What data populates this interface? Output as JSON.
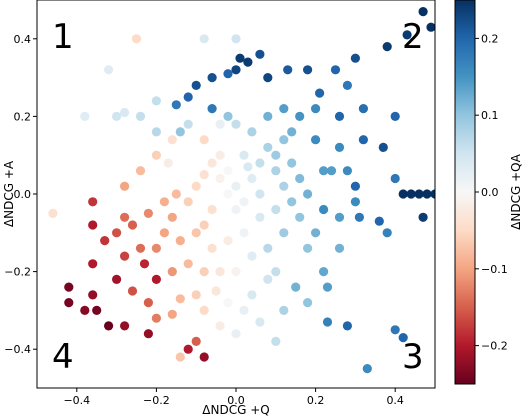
{
  "chart_data": {
    "type": "scatter",
    "title": "",
    "xlabel": "ΔNDCG +Q",
    "ylabel": "ΔNDCG +A",
    "colorbar_label": "ΔNDCG +QA",
    "colormap": "RdBu",
    "xlim": [
      -0.5,
      0.5
    ],
    "ylim": [
      -0.5,
      0.5
    ],
    "clim": [
      -0.25,
      0.25
    ],
    "xticks": [
      "−0.4",
      "−0.2",
      "0.0",
      "0.2",
      "0.4"
    ],
    "yticks": [
      "−0.4",
      "−0.2",
      "0.0",
      "0.2",
      "0.4"
    ],
    "cticks": [
      "−0.2",
      "−0.1",
      "0.0",
      "0.1",
      "0.2"
    ],
    "quadrant_labels": [
      "1",
      "2",
      "3",
      "4"
    ],
    "grid": false,
    "points": [
      [
        0.47,
        0.47,
        0.25
      ],
      [
        0.49,
        0.43,
        0.25
      ],
      [
        0.38,
        0.38,
        0.24
      ],
      [
        0.43,
        0.41,
        0.24
      ],
      [
        0.3,
        0.35,
        0.22
      ],
      [
        0.25,
        0.32,
        0.2
      ],
      [
        0.18,
        0.32,
        0.22
      ],
      [
        0.13,
        0.32,
        0.21
      ],
      [
        0.08,
        0.3,
        0.23
      ],
      [
        0.01,
        0.35,
        0.24
      ],
      [
        0.0,
        0.32,
        0.23
      ],
      [
        -0.02,
        0.31,
        0.2
      ],
      [
        -0.06,
        0.3,
        0.22
      ],
      [
        -0.1,
        0.28,
        0.22
      ],
      [
        -0.12,
        0.25,
        0.2
      ],
      [
        -0.15,
        0.23,
        0.18
      ],
      [
        -0.06,
        0.22,
        0.18
      ],
      [
        0.0,
        0.4,
        0.05
      ],
      [
        -0.08,
        0.4,
        0.04
      ],
      [
        -0.25,
        0.4,
        -0.05
      ],
      [
        -0.32,
        0.32,
        0.03
      ],
      [
        -0.24,
        0.2,
        0.06
      ],
      [
        -0.28,
        0.21,
        0.04
      ],
      [
        -0.3,
        0.2,
        0.05
      ],
      [
        -0.38,
        0.2,
        0.03
      ],
      [
        -0.2,
        0.16,
        0.07
      ],
      [
        -0.14,
        0.16,
        0.1
      ],
      [
        -0.12,
        0.18,
        0.06
      ],
      [
        0.2,
        0.22,
        0.16
      ],
      [
        0.26,
        0.2,
        0.2
      ],
      [
        0.32,
        0.22,
        0.19
      ],
      [
        0.4,
        0.2,
        0.2
      ],
      [
        0.37,
        0.12,
        0.22
      ],
      [
        0.32,
        0.14,
        0.2
      ],
      [
        0.26,
        0.12,
        0.16
      ],
      [
        0.28,
        0.06,
        0.16
      ],
      [
        0.3,
        0.02,
        0.2
      ],
      [
        0.22,
        -0.04,
        0.16
      ],
      [
        0.31,
        -0.06,
        0.18
      ],
      [
        0.36,
        -0.07,
        0.2
      ],
      [
        0.38,
        -0.1,
        0.17
      ],
      [
        0.47,
        -0.06,
        0.24
      ],
      [
        0.42,
        0.0,
        0.25
      ],
      [
        0.44,
        0.0,
        0.25
      ],
      [
        0.46,
        0.0,
        0.25
      ],
      [
        0.48,
        0.0,
        0.25
      ],
      [
        0.5,
        0.0,
        0.25
      ],
      [
        0.26,
        -0.14,
        0.12
      ],
      [
        0.22,
        -0.2,
        0.13
      ],
      [
        0.18,
        -0.28,
        0.1
      ],
      [
        0.23,
        -0.33,
        0.17
      ],
      [
        0.28,
        -0.34,
        0.2
      ],
      [
        0.23,
        -0.24,
        0.14
      ],
      [
        0.15,
        -0.24,
        0.12
      ],
      [
        0.12,
        -0.3,
        0.08
      ],
      [
        0.4,
        -0.35,
        0.18
      ],
      [
        0.08,
        -0.22,
        0.05
      ],
      [
        0.04,
        -0.26,
        0.04
      ],
      [
        0.02,
        -0.3,
        0.02
      ],
      [
        -0.02,
        -0.28,
        0.0
      ],
      [
        -0.05,
        -0.25,
        -0.03
      ],
      [
        -0.08,
        -0.3,
        -0.05
      ],
      [
        -0.1,
        -0.26,
        -0.06
      ],
      [
        -0.14,
        -0.27,
        -0.08
      ],
      [
        -0.16,
        -0.31,
        -0.1
      ],
      [
        -0.2,
        -0.32,
        -0.13
      ],
      [
        -0.22,
        -0.28,
        -0.15
      ],
      [
        -0.26,
        -0.25,
        -0.16
      ],
      [
        -0.28,
        -0.34,
        -0.22
      ],
      [
        -0.32,
        -0.34,
        -0.25
      ],
      [
        -0.36,
        -0.26,
        -0.22
      ],
      [
        -0.42,
        -0.24,
        -0.24
      ],
      [
        -0.36,
        -0.18,
        -0.2
      ],
      [
        -0.33,
        -0.12,
        -0.18
      ],
      [
        -0.3,
        -0.1,
        -0.16
      ],
      [
        -0.26,
        -0.08,
        -0.15
      ],
      [
        -0.22,
        -0.05,
        -0.12
      ],
      [
        -0.18,
        -0.02,
        -0.09
      ],
      [
        -0.15,
        0.0,
        -0.08
      ],
      [
        -0.12,
        -0.02,
        -0.06
      ],
      [
        -0.1,
        0.02,
        -0.05
      ],
      [
        -0.08,
        0.05,
        -0.04
      ],
      [
        -0.06,
        0.08,
        -0.03
      ],
      [
        -0.04,
        0.1,
        -0.02
      ],
      [
        -0.02,
        0.06,
        0.0
      ],
      [
        0.0,
        0.02,
        0.02
      ],
      [
        0.02,
        -0.02,
        0.01
      ],
      [
        0.04,
        0.04,
        0.03
      ],
      [
        0.06,
        0.08,
        0.06
      ],
      [
        0.08,
        0.12,
        0.08
      ],
      [
        0.1,
        0.1,
        0.09
      ],
      [
        0.12,
        0.14,
        0.1
      ],
      [
        0.14,
        0.08,
        0.1
      ],
      [
        0.16,
        0.04,
        0.11
      ],
      [
        0.12,
        0.02,
        0.08
      ],
      [
        0.1,
        -0.04,
        0.06
      ],
      [
        0.06,
        -0.06,
        0.04
      ],
      [
        0.02,
        -0.1,
        0.01
      ],
      [
        -0.02,
        -0.12,
        -0.02
      ],
      [
        -0.06,
        -0.14,
        -0.04
      ],
      [
        -0.1,
        -0.1,
        -0.07
      ],
      [
        -0.14,
        -0.12,
        -0.09
      ],
      [
        -0.18,
        -0.1,
        -0.1
      ],
      [
        -0.2,
        -0.14,
        -0.12
      ],
      [
        -0.24,
        -0.14,
        -0.14
      ],
      [
        -0.28,
        -0.16,
        -0.17
      ],
      [
        -0.46,
        -0.05,
        -0.04
      ],
      [
        -0.36,
        -0.02,
        -0.18
      ],
      [
        -0.36,
        -0.08,
        -0.2
      ],
      [
        -0.28,
        0.02,
        -0.1
      ],
      [
        -0.24,
        0.06,
        -0.08
      ],
      [
        -0.2,
        0.1,
        -0.06
      ],
      [
        -0.16,
        0.14,
        -0.04
      ],
      [
        -0.08,
        0.14,
        -0.05
      ],
      [
        -0.04,
        0.18,
        0.02
      ],
      [
        0.0,
        0.18,
        0.06
      ],
      [
        0.04,
        0.16,
        0.08
      ],
      [
        0.08,
        0.2,
        0.12
      ],
      [
        0.12,
        0.22,
        0.14
      ],
      [
        0.16,
        0.2,
        0.15
      ],
      [
        0.2,
        0.14,
        0.16
      ],
      [
        0.22,
        0.06,
        0.14
      ],
      [
        0.18,
        0.0,
        0.12
      ],
      [
        0.16,
        -0.06,
        0.1
      ],
      [
        0.12,
        -0.1,
        0.09
      ],
      [
        0.08,
        -0.14,
        0.07
      ],
      [
        0.04,
        -0.16,
        0.03
      ],
      [
        0.0,
        -0.2,
        -0.01
      ],
      [
        -0.04,
        -0.2,
        -0.03
      ],
      [
        -0.08,
        -0.2,
        -0.06
      ],
      [
        -0.12,
        -0.18,
        -0.08
      ],
      [
        -0.16,
        -0.2,
        -0.11
      ],
      [
        -0.02,
        0.0,
        0.0
      ],
      [
        0.0,
        -0.04,
        0.01
      ],
      [
        0.02,
        0.1,
        0.04
      ],
      [
        0.06,
        0.0,
        0.05
      ],
      [
        -0.06,
        -0.04,
        -0.04
      ],
      [
        -0.04,
        0.04,
        -0.01
      ],
      [
        0.03,
        0.07,
        0.04
      ],
      [
        0.1,
        0.06,
        0.08
      ],
      [
        -0.2,
        -0.22,
        -0.2
      ],
      [
        -0.23,
        -0.18,
        -0.19
      ],
      [
        -0.3,
        -0.22,
        -0.21
      ],
      [
        -0.35,
        -0.3,
        -0.24
      ],
      [
        -0.42,
        -0.28,
        -0.24
      ],
      [
        -0.38,
        -0.3,
        -0.23
      ],
      [
        -0.22,
        -0.36,
        -0.22
      ],
      [
        -0.12,
        -0.4,
        -0.2
      ],
      [
        -0.08,
        -0.42,
        -0.22
      ],
      [
        -0.1,
        -0.38,
        -0.15
      ],
      [
        -0.14,
        -0.42,
        -0.07
      ],
      [
        0.06,
        -0.33,
        0.04
      ],
      [
        0.0,
        -0.36,
        0.02
      ],
      [
        -0.04,
        -0.34,
        -0.02
      ],
      [
        0.1,
        -0.38,
        0.06
      ],
      [
        -0.28,
        -0.06,
        -0.14
      ],
      [
        0.33,
        -0.45,
        0.16
      ],
      [
        0.42,
        -0.37,
        0.2
      ],
      [
        0.4,
        0.04,
        0.18
      ],
      [
        0.24,
        0.06,
        0.14
      ],
      [
        0.28,
        0.28,
        0.18
      ],
      [
        0.21,
        0.26,
        0.2
      ],
      [
        0.06,
        0.36,
        0.22
      ],
      [
        0.03,
        0.34,
        0.24
      ],
      [
        -0.02,
        0.2,
        0.1
      ],
      [
        0.14,
        0.16,
        0.12
      ],
      [
        -0.2,
        0.24,
        0.06
      ],
      [
        -0.17,
        0.08,
        -0.02
      ],
      [
        0.1,
        -0.2,
        0.06
      ],
      [
        -0.16,
        -0.06,
        -0.1
      ],
      [
        -0.08,
        -0.08,
        -0.06
      ],
      [
        0.18,
        -0.14,
        0.1
      ],
      [
        0.2,
        -0.1,
        0.12
      ],
      [
        0.14,
        -0.02,
        0.1
      ],
      [
        0.3,
        -0.02,
        0.16
      ],
      [
        0.26,
        -0.06,
        0.14
      ]
    ]
  }
}
